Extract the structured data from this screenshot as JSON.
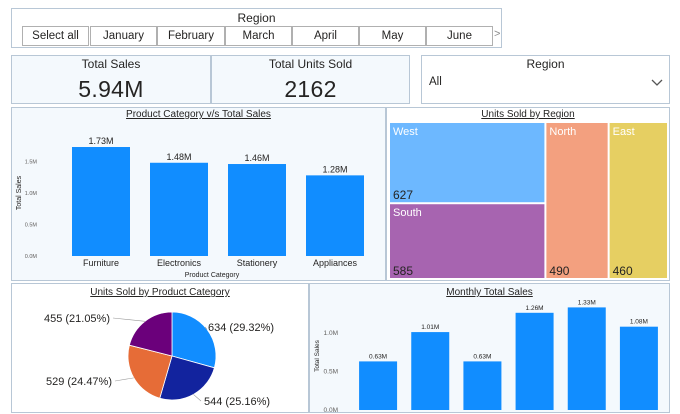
{
  "region_slicer": {
    "title": "Region",
    "chips": [
      "Select all",
      "January",
      "February",
      "March",
      "April",
      "May",
      "June"
    ],
    "next_arrow": ">"
  },
  "cards": {
    "total_sales": {
      "label": "Total Sales",
      "value": "5.94M"
    },
    "total_units": {
      "label": "Total Units Sold",
      "value": "2162"
    }
  },
  "region_dropdown": {
    "title": "Region",
    "selected": "All"
  },
  "visual_titles": {
    "category_sales": "Product Category v/s Total Sales",
    "units_region": "Units Sold by Region",
    "units_category": "Units Sold by Product Category",
    "monthly_sales": "Monthly Total Sales"
  },
  "colors": {
    "bar": "#118dff",
    "west": "#6db8ff",
    "south": "#a764b0",
    "north": "#f3a07f",
    "east": "#e6cf62",
    "pie_blue": "#118dff",
    "pie_navy": "#12239e",
    "pie_orange": "#e66c37",
    "pie_purple": "#6b007b"
  },
  "chart_data": [
    {
      "type": "bar",
      "title": "Product Category v/s Total Sales",
      "xlabel": "Product Category",
      "ylabel": "Total Sales",
      "categories": [
        "Furniture",
        "Electronics",
        "Stationery",
        "Appliances"
      ],
      "values": [
        1.73,
        1.48,
        1.46,
        1.28
      ],
      "data_labels": [
        "1.73M",
        "1.48M",
        "1.46M",
        "1.28M"
      ],
      "ylim": [
        0,
        2
      ],
      "yticks": [
        0,
        0.5,
        1,
        1.5
      ],
      "ytick_labels": [
        "0.0M",
        "0.5M",
        "1.0M",
        "1.5M"
      ]
    },
    {
      "type": "treemap",
      "title": "Units Sold by Region",
      "series": [
        {
          "name": "West",
          "value": 627
        },
        {
          "name": "South",
          "value": 585
        },
        {
          "name": "North",
          "value": 490
        },
        {
          "name": "East",
          "value": 460
        }
      ]
    },
    {
      "type": "pie",
      "title": "Units Sold by Product Category",
      "slices": [
        {
          "value": 634,
          "label": "634 (29.32%)"
        },
        {
          "value": 544,
          "label": "544 (25.16%)"
        },
        {
          "value": 529,
          "label": "529 (24.47%)"
        },
        {
          "value": 455,
          "label": "455 (21.05%)"
        }
      ]
    },
    {
      "type": "bar",
      "title": "Monthly Total Sales",
      "ylabel": "Total Sales",
      "values": [
        0.63,
        1.01,
        0.63,
        1.26,
        1.33,
        1.08
      ],
      "data_labels": [
        "0.63M",
        "1.01M",
        "0.63M",
        "1.26M",
        "1.33M",
        "1.08M"
      ],
      "ylim": [
        0,
        1.4
      ],
      "yticks": [
        0,
        0.5,
        1
      ],
      "ytick_labels": [
        "0.0M",
        "0.5M",
        "1.0M"
      ]
    }
  ]
}
